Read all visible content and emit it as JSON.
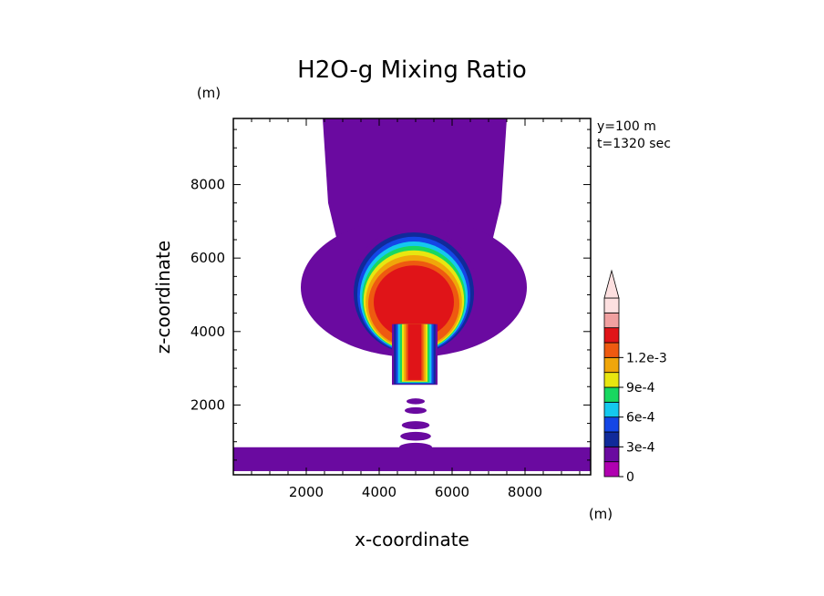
{
  "chart_data": {
    "type": "heatmap",
    "title": "H2O-g Mixing Ratio",
    "xlabel": "x-coordinate",
    "ylabel": "z-coordinate",
    "x_unit": "(m)",
    "y_unit": "(m)",
    "xlim": [
      0,
      9800
    ],
    "ylim": [
      100,
      9800
    ],
    "x_ticks": [
      2000,
      4000,
      6000,
      8000
    ],
    "y_ticks": [
      2000,
      4000,
      6000,
      8000
    ],
    "annotations": [
      "y=100 m",
      "t=1320 sec"
    ],
    "colorbar": {
      "levels": [
        0,
        0.00015,
        0.0003,
        0.00045,
        0.0006,
        0.00075,
        0.0009,
        0.00105,
        0.0012,
        0.00135
      ],
      "colors": [
        "#b000b0",
        "#6a0aa0",
        "#102a9a",
        "#1446e6",
        "#14c8ee",
        "#18d860",
        "#e8e610",
        "#f0a60a",
        "#ee5a10",
        "#e01418",
        "#f0a0a0",
        "#fde0e0"
      ],
      "tick_labels": [
        "0",
        "3e-4",
        "6e-4",
        "9e-4",
        "1.2e-3"
      ],
      "tick_values": [
        0,
        0.0003,
        0.0006,
        0.0009,
        0.0012
      ],
      "extend": "max"
    },
    "field": {
      "description_values": "approximate contour shells of the mixing ratio field",
      "column": {
        "x_min": 2450,
        "x_max": 7500,
        "z_min": 5200,
        "z_max": 9800,
        "value": 5e-05
      },
      "low_layer": {
        "x_min": 0,
        "x_max": 9800,
        "z_min": 200,
        "z_max": 850,
        "value": 5e-05
      },
      "shells": [
        {
          "value": 5e-05,
          "cx": 4950,
          "cz": 5200,
          "rx": 3100,
          "rz": 1900
        },
        {
          "value": 0.0001,
          "cx": 4950,
          "cz": 5100,
          "rx": 1750,
          "rz": 1750
        },
        {
          "value": 0.00025,
          "cx": 4950,
          "cz": 5050,
          "rx": 1650,
          "rz": 1650
        },
        {
          "value": 0.0004,
          "cx": 4950,
          "cz": 5000,
          "rx": 1550,
          "rz": 1580
        },
        {
          "value": 0.00055,
          "cx": 4950,
          "cz": 4950,
          "rx": 1480,
          "rz": 1500
        },
        {
          "value": 0.0007,
          "cx": 4950,
          "cz": 4900,
          "rx": 1420,
          "rz": 1430
        },
        {
          "value": 0.00085,
          "cx": 4950,
          "cz": 4850,
          "rx": 1380,
          "rz": 1360
        },
        {
          "value": 0.001,
          "cx": 4950,
          "cz": 4800,
          "rx": 1320,
          "rz": 1280
        },
        {
          "value": 0.00115,
          "cx": 4950,
          "cz": 4750,
          "rx": 1250,
          "rz": 1180
        },
        {
          "value": 0.0013,
          "cx": 4950,
          "cz": 4800,
          "rx": 1100,
          "rz": 1000
        }
      ],
      "stem": {
        "x_min": 4350,
        "x_max": 5600,
        "z_min": 2550,
        "z_max": 4200
      },
      "blobs": [
        {
          "cx": 5000,
          "cz": 2100,
          "rx": 250,
          "rz": 80,
          "value": 5e-05
        },
        {
          "cx": 5000,
          "cz": 1850,
          "rx": 300,
          "rz": 90,
          "value": 5e-05
        },
        {
          "cx": 5000,
          "cz": 1450,
          "rx": 380,
          "rz": 110,
          "value": 5e-05
        },
        {
          "cx": 5000,
          "cz": 1150,
          "rx": 420,
          "rz": 120,
          "value": 5e-05
        },
        {
          "cx": 5000,
          "cz": 850,
          "rx": 450,
          "rz": 120,
          "value": 5e-05
        }
      ]
    }
  }
}
